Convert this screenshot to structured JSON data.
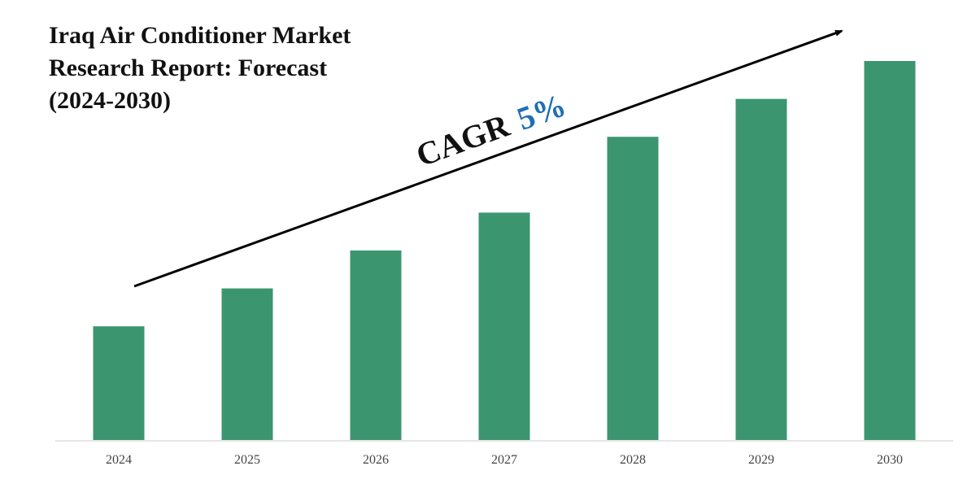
{
  "chart_data": {
    "type": "bar",
    "title_lines": [
      "Iraq Air Conditioner Market",
      "Research Report: Forecast",
      "(2024-2030)"
    ],
    "categories": [
      "2024",
      "2025",
      "2026",
      "2027",
      "2028",
      "2029",
      "2030"
    ],
    "values": [
      30,
      40,
      50,
      60,
      80,
      90,
      100
    ],
    "annotation": {
      "label": "CAGR",
      "value": "5%"
    },
    "xlabel": "",
    "ylabel": "",
    "grid": false,
    "legend": "none"
  },
  "colors": {
    "bar": "#3b9670",
    "cagr_value": "#1f6fb5",
    "axis": "#cccccc",
    "arrow": "#000000"
  }
}
